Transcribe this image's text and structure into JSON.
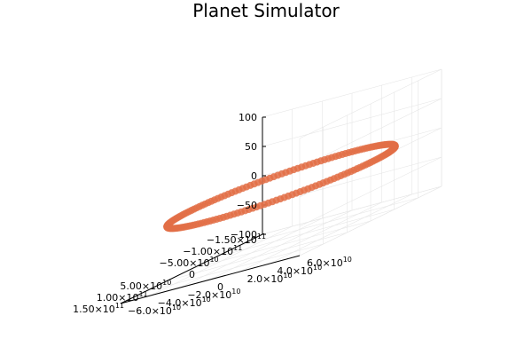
{
  "chart_data": {
    "type": "scatter",
    "title": "Planet Simulator",
    "series_color": "#e26f46",
    "xlabel": "",
    "ylabel": "",
    "zlabel": "",
    "xlim": [
      -150000000000,
      150000000000
    ],
    "ylim": [
      -60000000000,
      60000000000
    ],
    "zlim": [
      -100,
      100
    ],
    "grid": true,
    "legend": "none",
    "x_ticks": [
      {
        "value": -150000000000,
        "mantissa": "−1.50×10",
        "exp": "11"
      },
      {
        "value": -100000000000,
        "mantissa": "−1.00×10",
        "exp": "11"
      },
      {
        "value": -50000000000,
        "mantissa": "−5.00×10",
        "exp": "10"
      },
      {
        "value": 0,
        "mantissa": "0",
        "exp": ""
      },
      {
        "value": 50000000000,
        "mantissa": "5.00×10",
        "exp": "10"
      },
      {
        "value": 100000000000,
        "mantissa": "1.00×10",
        "exp": "11"
      },
      {
        "value": 150000000000,
        "mantissa": "1.50×10",
        "exp": "11"
      }
    ],
    "y_ticks": [
      {
        "value": -60000000000,
        "mantissa": "−6.0×10",
        "exp": "10"
      },
      {
        "value": -40000000000,
        "mantissa": "−4.0×10",
        "exp": "10"
      },
      {
        "value": -20000000000,
        "mantissa": "−2.0×10",
        "exp": "10"
      },
      {
        "value": 0,
        "mantissa": "0",
        "exp": ""
      },
      {
        "value": 20000000000,
        "mantissa": "2.0×10",
        "exp": "10"
      },
      {
        "value": 40000000000,
        "mantissa": "4.0×10",
        "exp": "10"
      },
      {
        "value": 60000000000,
        "mantissa": "6.0×10",
        "exp": "10"
      }
    ],
    "z_ticks": [
      {
        "value": 100,
        "mantissa": "100",
        "exp": ""
      },
      {
        "value": 50,
        "mantissa": "50",
        "exp": ""
      },
      {
        "value": 0,
        "mantissa": "0",
        "exp": ""
      },
      {
        "value": -50,
        "mantissa": "−50",
        "exp": ""
      },
      {
        "value": -100,
        "mantissa": "−100",
        "exp": ""
      }
    ],
    "orbit": {
      "description_of_points": "circular-ish orbit in the x-y plane at z = 0",
      "semi_axis_x": 150000000000,
      "semi_axis_y": 60000000000,
      "z": 0,
      "num_points": 180
    }
  }
}
